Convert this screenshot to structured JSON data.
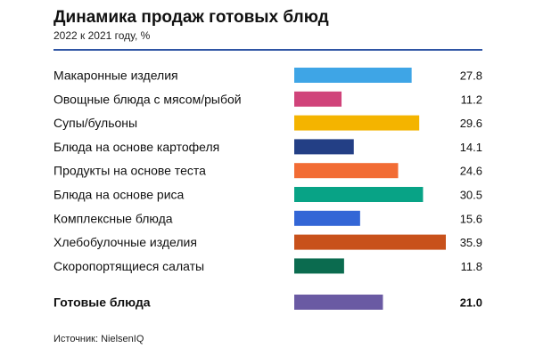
{
  "header": {
    "title": "Динамика продаж готовых блюд",
    "subtitle": "2022 к 2021 году, %"
  },
  "colors": {
    "rule": "#2f55a4"
  },
  "chart_data": {
    "type": "bar",
    "orientation": "horizontal",
    "title": "Динамика продаж готовых блюд",
    "subtitle": "2022 к 2021 году, %",
    "xlim": [
      0,
      35.9
    ],
    "grid": false,
    "categories": [
      "Макаронные изделия",
      "Овощные блюда с мясом/рыбой",
      "Супы/бульоны",
      "Блюда на основе картофеля",
      "Продукты на основе теста",
      "Блюда на основе риса",
      "Комплексные блюда",
      "Хлебобулочные изделия",
      "Скоропортящиеся салаты"
    ],
    "values": [
      27.8,
      11.2,
      29.6,
      14.1,
      24.6,
      30.5,
      15.6,
      35.9,
      11.8
    ],
    "value_labels": [
      "27.8",
      "11.2",
      "29.6",
      "14.1",
      "24.6",
      "30.5",
      "15.6",
      "35.9",
      "11.8"
    ],
    "colors": [
      "#3ea5e6",
      "#d0437a",
      "#f4b400",
      "#233f85",
      "#f26c34",
      "#08a386",
      "#3366d6",
      "#c8511b",
      "#0b6b4f"
    ],
    "total": {
      "category": "Готовые блюда",
      "value": 21.0,
      "value_label": "21.0",
      "color": "#6a5aa3"
    }
  },
  "footer": {
    "source": "Источник: NielsenIQ"
  }
}
